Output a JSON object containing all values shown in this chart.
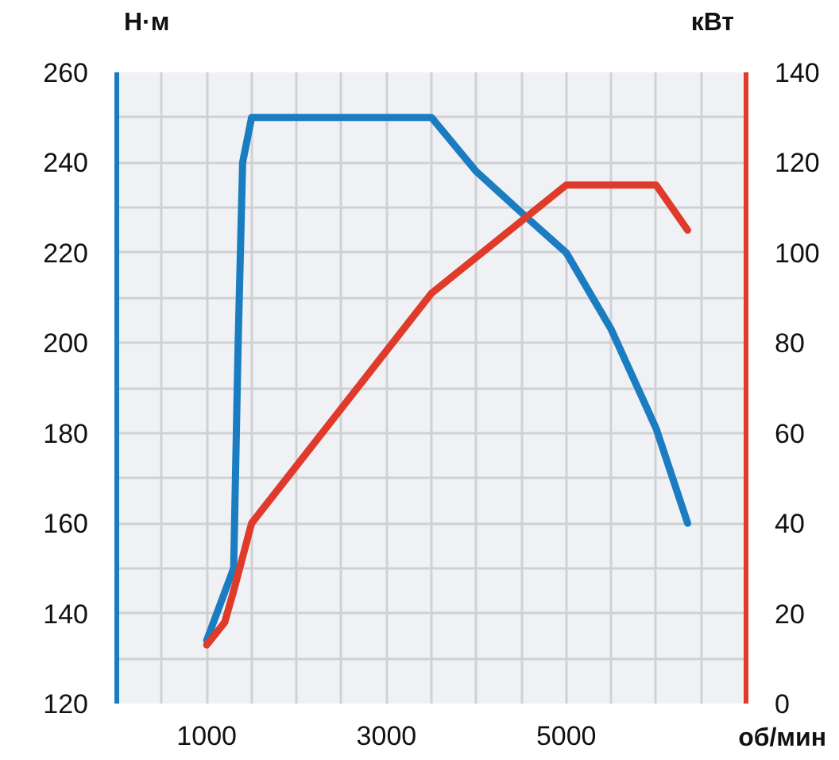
{
  "chart_data": {
    "type": "line",
    "ylabel": "Н·м",
    "y2label": "кВт",
    "xlabel": "об/мин",
    "xlim": [
      0,
      7000
    ],
    "xticks": [
      1000,
      3000,
      5000
    ],
    "ylim": [
      120,
      260
    ],
    "yticks": [
      120,
      140,
      160,
      180,
      200,
      220,
      240,
      260
    ],
    "y2lim": [
      0,
      140
    ],
    "y2ticks": [
      0,
      20,
      40,
      60,
      80,
      100,
      120,
      140
    ],
    "grid": true,
    "line_style": "solid",
    "marker": "none",
    "series": [
      {
        "color": "#1a7cc1",
        "x": [
          1000,
          1300,
          1350,
          1400,
          1500,
          3500,
          4000,
          4550,
          5000,
          5500,
          6000,
          6350
        ],
        "values": [
          134,
          150,
          200,
          240,
          250,
          250,
          238,
          228,
          220,
          203,
          181,
          160
        ]
      },
      {
        "color": "#e03a2a",
        "axis": "y2",
        "x": [
          1000,
          1200,
          1300,
          1500,
          3500,
          5000,
          6000,
          6350
        ],
        "values": [
          13,
          18,
          25,
          40,
          91,
          115,
          115,
          105
        ]
      }
    ]
  }
}
